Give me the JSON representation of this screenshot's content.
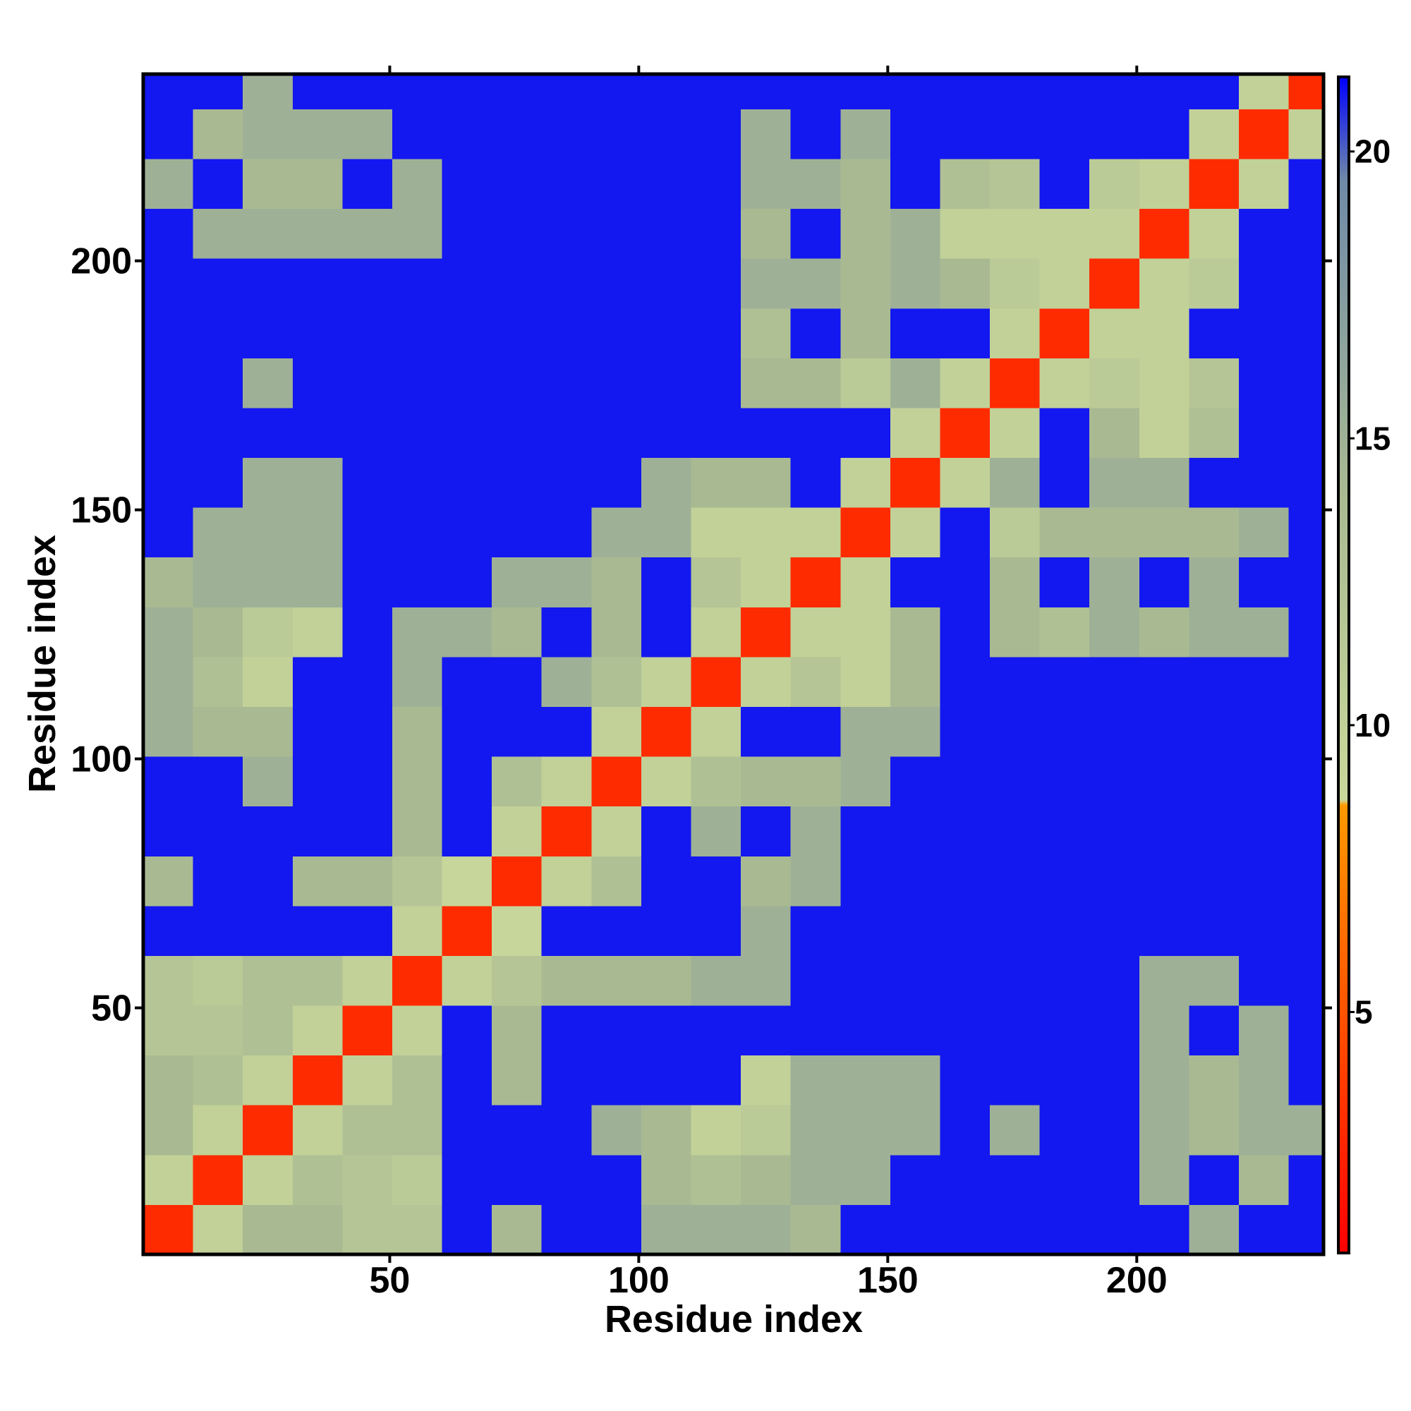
{
  "chart_data": {
    "type": "heatmap",
    "x_label": "Residue index",
    "y_label": "Residue index",
    "x": [
      5.5,
      15.5,
      25.5,
      35.5,
      45.5,
      55.5,
      65.5,
      75.5,
      85.5,
      95.5,
      105.5,
      115.5,
      125.5,
      135.5,
      145.5,
      155.5,
      165.5,
      175.5,
      185.5,
      195.5,
      205.5,
      215.5,
      225.5,
      235.5
    ],
    "y": [
      5.5,
      15.5,
      25.5,
      35.5,
      45.5,
      55.5,
      65.5,
      75.5,
      85.5,
      95.5,
      105.5,
      115.5,
      125.5,
      135.5,
      145.5,
      155.5,
      165.5,
      175.5,
      185.5,
      195.5,
      205.5,
      215.5,
      225.5,
      235.5
    ],
    "z": [
      [
        3,
        10,
        14,
        14,
        12,
        12,
        21,
        14,
        21,
        21,
        15,
        15,
        15,
        14,
        21,
        21,
        21,
        21,
        21,
        21,
        21,
        15,
        21,
        21
      ],
      [
        10,
        3,
        10,
        13,
        12,
        11,
        21,
        21,
        21,
        21,
        14,
        13,
        14,
        15,
        15,
        21,
        21,
        21,
        21,
        21,
        15,
        21,
        14,
        21
      ],
      [
        14,
        10,
        3,
        10,
        13,
        13,
        21,
        21,
        21,
        15,
        14,
        10,
        11,
        15,
        15,
        15,
        21,
        15,
        21,
        21,
        15,
        14,
        15,
        15
      ],
      [
        14,
        13,
        10,
        3,
        10,
        13,
        21,
        14,
        21,
        21,
        21,
        21,
        10,
        15,
        15,
        15,
        21,
        21,
        21,
        21,
        15,
        14,
        15,
        21
      ],
      [
        12,
        12,
        13,
        10,
        3,
        10,
        21,
        14,
        21,
        21,
        21,
        21,
        21,
        21,
        21,
        21,
        21,
        21,
        21,
        21,
        15,
        21,
        15,
        21
      ],
      [
        12,
        11,
        13,
        13,
        10,
        3,
        10,
        12,
        14,
        14,
        14,
        15,
        15,
        21,
        21,
        21,
        21,
        21,
        21,
        21,
        15,
        15,
        21,
        21
      ],
      [
        21,
        21,
        21,
        21,
        21,
        10,
        3,
        9,
        21,
        21,
        21,
        21,
        15,
        21,
        21,
        21,
        21,
        21,
        21,
        21,
        21,
        21,
        21,
        21
      ],
      [
        14,
        21,
        21,
        14,
        14,
        12,
        9,
        3,
        10,
        13,
        21,
        21,
        14,
        15,
        21,
        21,
        21,
        21,
        21,
        21,
        21,
        21,
        21,
        21
      ],
      [
        21,
        21,
        21,
        21,
        21,
        14,
        21,
        10,
        3,
        10,
        21,
        15,
        21,
        15,
        21,
        21,
        21,
        21,
        21,
        21,
        21,
        21,
        21,
        21
      ],
      [
        21,
        21,
        15,
        21,
        21,
        14,
        21,
        13,
        10,
        3,
        10,
        13,
        14,
        14,
        15,
        21,
        21,
        21,
        21,
        21,
        21,
        21,
        21,
        21
      ],
      [
        15,
        14,
        14,
        21,
        21,
        14,
        21,
        21,
        21,
        10,
        3,
        10,
        21,
        21,
        15,
        15,
        21,
        21,
        21,
        21,
        21,
        21,
        21,
        21
      ],
      [
        15,
        13,
        10,
        21,
        21,
        15,
        21,
        21,
        15,
        13,
        10,
        3,
        10,
        12,
        10,
        14,
        21,
        21,
        21,
        21,
        21,
        21,
        21,
        21
      ],
      [
        15,
        14,
        11,
        10,
        21,
        15,
        15,
        14,
        21,
        14,
        21,
        10,
        3,
        10,
        10,
        14,
        21,
        14,
        13,
        15,
        14,
        15,
        15,
        21
      ],
      [
        14,
        15,
        15,
        15,
        21,
        21,
        21,
        15,
        15,
        14,
        21,
        12,
        10,
        3,
        10,
        21,
        21,
        14,
        21,
        15,
        21,
        15,
        21,
        21
      ],
      [
        21,
        15,
        15,
        15,
        21,
        21,
        21,
        21,
        21,
        15,
        15,
        10,
        10,
        10,
        3,
        10,
        21,
        11,
        14,
        14,
        14,
        14,
        15,
        21
      ],
      [
        21,
        21,
        15,
        15,
        21,
        21,
        21,
        21,
        21,
        21,
        15,
        14,
        14,
        21,
        10,
        3,
        10,
        15,
        21,
        15,
        15,
        21,
        21,
        21
      ],
      [
        21,
        21,
        21,
        21,
        21,
        21,
        21,
        21,
        21,
        21,
        21,
        21,
        21,
        21,
        21,
        10,
        3,
        10,
        21,
        14,
        10,
        13,
        21,
        21
      ],
      [
        21,
        21,
        15,
        21,
        21,
        21,
        21,
        21,
        21,
        21,
        21,
        21,
        14,
        14,
        11,
        15,
        10,
        3,
        10,
        11,
        10,
        12,
        21,
        21
      ],
      [
        21,
        21,
        21,
        21,
        21,
        21,
        21,
        21,
        21,
        21,
        21,
        21,
        13,
        21,
        14,
        21,
        21,
        10,
        3,
        10,
        10,
        21,
        21,
        21
      ],
      [
        21,
        21,
        21,
        21,
        21,
        21,
        21,
        21,
        21,
        21,
        21,
        21,
        15,
        15,
        14,
        15,
        14,
        11,
        10,
        3,
        10,
        11,
        21,
        21
      ],
      [
        21,
        15,
        15,
        15,
        15,
        15,
        21,
        21,
        21,
        21,
        21,
        21,
        14,
        21,
        14,
        15,
        10,
        10,
        10,
        10,
        3,
        10,
        21,
        21
      ],
      [
        15,
        21,
        14,
        14,
        21,
        15,
        21,
        21,
        21,
        21,
        21,
        21,
        15,
        15,
        14,
        21,
        13,
        12,
        21,
        11,
        10,
        3,
        10,
        21
      ],
      [
        21,
        14,
        15,
        15,
        15,
        21,
        21,
        21,
        21,
        21,
        21,
        21,
        15,
        21,
        15,
        21,
        21,
        21,
        21,
        21,
        21,
        10,
        3,
        10
      ],
      [
        21,
        21,
        15,
        21,
        21,
        21,
        21,
        21,
        21,
        21,
        21,
        21,
        21,
        21,
        21,
        21,
        21,
        21,
        21,
        21,
        21,
        21,
        10,
        3
      ]
    ],
    "xlim": [
      0.5,
      237.5
    ],
    "ylim": [
      0.5,
      237.5
    ],
    "xticks": [
      50,
      100,
      150,
      200
    ],
    "yticks": [
      50,
      100,
      150,
      200
    ],
    "clim": [
      0.8,
      21.3
    ],
    "cticks": [
      5,
      10,
      15,
      20
    ],
    "colorscale": [
      [
        0.8,
        "#ff0000"
      ],
      [
        8.6,
        "#ff9900"
      ],
      [
        8.7,
        "#c9d89a"
      ],
      [
        14,
        "#a9ba92"
      ],
      [
        19.5,
        "#6f8aa8"
      ],
      [
        21.3,
        "#0000ff"
      ]
    ]
  }
}
